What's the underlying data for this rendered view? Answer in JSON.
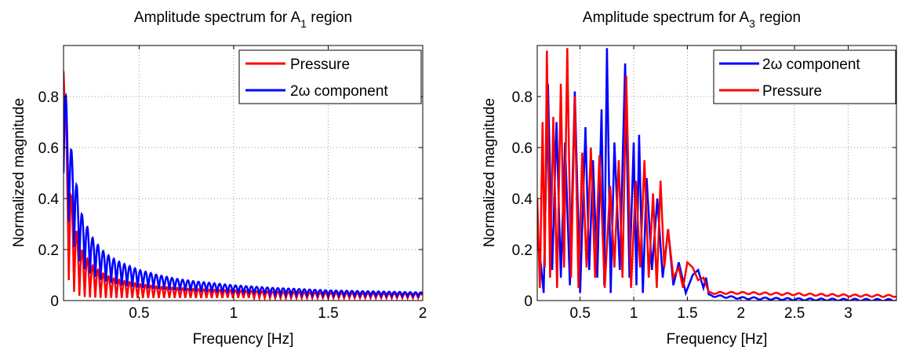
{
  "chart_data": [
    {
      "type": "line",
      "title": "Amplitude spectrum for A",
      "title_subscript": "1",
      "title_suffix": " region",
      "xlabel": "Frequency [Hz]",
      "ylabel": "Normalized magnitude",
      "xlim": [
        0.1,
        2.0
      ],
      "ylim": [
        0,
        1.0
      ],
      "xticks": [
        0.5,
        1,
        1.5,
        2
      ],
      "xtick_labels": [
        "0.5",
        "1",
        "1.5",
        "2"
      ],
      "yticks": [
        0,
        0.2,
        0.4,
        0.6,
        0.8
      ],
      "ytick_labels": [
        "0",
        "0.2",
        "0.4",
        "0.6",
        "0.8"
      ],
      "grid": true,
      "legend_position": "top-right",
      "series": [
        {
          "name": "Pressure",
          "color": "#ff0000",
          "x": [
            0.1,
            0.12,
            0.14,
            0.16,
            0.18,
            0.2,
            0.25,
            0.3,
            0.35,
            0.4,
            0.5,
            0.6,
            0.7,
            0.8,
            1.0,
            1.2,
            1.5,
            1.8,
            2.0
          ],
          "env_max": [
            1.0,
            0.55,
            0.42,
            0.3,
            0.24,
            0.19,
            0.14,
            0.11,
            0.09,
            0.08,
            0.065,
            0.055,
            0.05,
            0.045,
            0.04,
            0.035,
            0.03,
            0.028,
            0.027
          ],
          "env_min": [
            0.9,
            0.1,
            0.05,
            0.03,
            0.02,
            0.015,
            0.012,
            0.01,
            0.01,
            0.01,
            0.01,
            0.01,
            0.01,
            0.01,
            0.01,
            0.01,
            0.01,
            0.01,
            0.01
          ]
        },
        {
          "name": "2ω component",
          "color": "#0000ff",
          "x": [
            0.1,
            0.12,
            0.14,
            0.16,
            0.18,
            0.2,
            0.25,
            0.3,
            0.35,
            0.4,
            0.5,
            0.6,
            0.7,
            0.8,
            1.0,
            1.2,
            1.5,
            1.8,
            2.0
          ],
          "env_max": [
            0.98,
            0.7,
            0.6,
            0.5,
            0.4,
            0.33,
            0.25,
            0.2,
            0.17,
            0.15,
            0.12,
            0.1,
            0.085,
            0.075,
            0.06,
            0.05,
            0.04,
            0.035,
            0.032
          ],
          "env_min": [
            0.5,
            0.35,
            0.25,
            0.2,
            0.16,
            0.13,
            0.1,
            0.08,
            0.07,
            0.06,
            0.05,
            0.045,
            0.04,
            0.035,
            0.028,
            0.024,
            0.02,
            0.018,
            0.017
          ]
        }
      ]
    },
    {
      "type": "line",
      "title": "Amplitude spectrum for A",
      "title_subscript": "3",
      "title_suffix": " region",
      "xlabel": "Frequency [Hz]",
      "ylabel": "Normalized magnitude",
      "xlim": [
        0.1,
        3.45
      ],
      "ylim": [
        0,
        1.0
      ],
      "xticks": [
        0.5,
        1,
        1.5,
        2,
        2.5,
        3
      ],
      "xtick_labels": [
        "0.5",
        "1",
        "1.5",
        "2",
        "2.5",
        "3"
      ],
      "yticks": [
        0,
        0.2,
        0.4,
        0.6,
        0.8
      ],
      "ytick_labels": [
        "0",
        "0.2",
        "0.4",
        "0.6",
        "0.8"
      ],
      "grid": true,
      "legend_position": "top-right",
      "series": [
        {
          "name": "2ω component",
          "color": "#0000ff",
          "peaks": [
            [
              0.12,
              0.2
            ],
            [
              0.2,
              0.85
            ],
            [
              0.28,
              0.7
            ],
            [
              0.36,
              0.62
            ],
            [
              0.45,
              0.82
            ],
            [
              0.55,
              0.68
            ],
            [
              0.62,
              0.55
            ],
            [
              0.7,
              0.75
            ],
            [
              0.75,
              0.99
            ],
            [
              0.82,
              0.62
            ],
            [
              0.92,
              0.93
            ],
            [
              1.0,
              0.62
            ],
            [
              1.05,
              0.65
            ],
            [
              1.12,
              0.48
            ],
            [
              1.22,
              0.4
            ],
            [
              1.32,
              0.28
            ],
            [
              1.42,
              0.15
            ],
            [
              1.55,
              0.1
            ],
            [
              1.65,
              0.05
            ]
          ],
          "x": [
            1.7,
            2.0,
            2.5,
            3.0,
            3.45
          ],
          "tail": [
            0.02,
            0.01,
            0.005,
            0.003,
            0.002
          ]
        },
        {
          "name": "Pressure",
          "color": "#ff0000",
          "peaks": [
            [
              0.1,
              0.4
            ],
            [
              0.15,
              0.7
            ],
            [
              0.19,
              0.98
            ],
            [
              0.25,
              0.72
            ],
            [
              0.32,
              0.85
            ],
            [
              0.38,
              0.99
            ],
            [
              0.45,
              0.8
            ],
            [
              0.52,
              0.58
            ],
            [
              0.6,
              0.6
            ],
            [
              0.68,
              0.57
            ],
            [
              0.78,
              0.45
            ],
            [
              0.86,
              0.55
            ],
            [
              0.93,
              0.88
            ],
            [
              1.02,
              0.47
            ],
            [
              1.1,
              0.55
            ],
            [
              1.18,
              0.42
            ],
            [
              1.25,
              0.47
            ],
            [
              1.32,
              0.28
            ],
            [
              1.42,
              0.13
            ],
            [
              1.5,
              0.15
            ],
            [
              1.6,
              0.08
            ]
          ],
          "x": [
            1.7,
            2.0,
            2.5,
            3.0,
            3.45
          ],
          "tail": [
            0.03,
            0.03,
            0.025,
            0.02,
            0.018
          ]
        }
      ]
    }
  ]
}
